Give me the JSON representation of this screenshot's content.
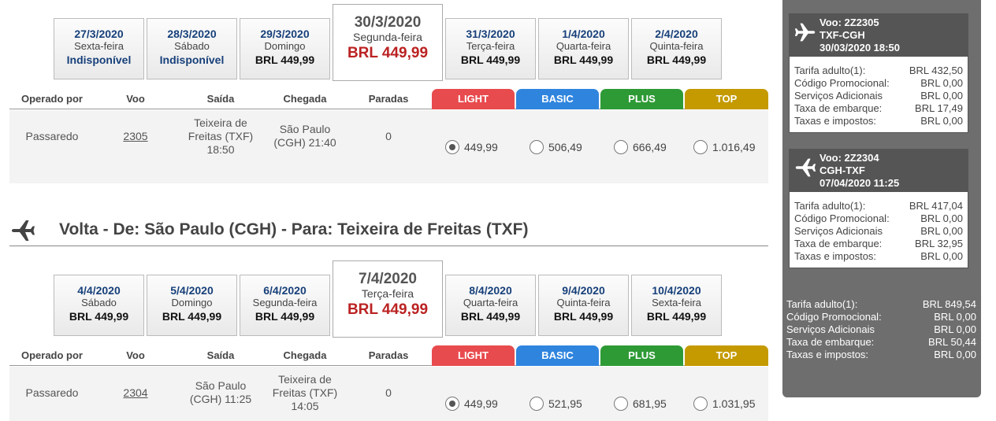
{
  "outbound": {
    "dates": [
      {
        "date": "27/3/2020",
        "weekday": "Sexta-feira",
        "price": "Indisponível",
        "unavailable": true
      },
      {
        "date": "28/3/2020",
        "weekday": "Sábado",
        "price": "Indisponível",
        "unavailable": true
      },
      {
        "date": "29/3/2020",
        "weekday": "Domingo",
        "price": "BRL 449,99"
      },
      {
        "date": "30/3/2020",
        "weekday": "Segunda-feira",
        "price": "BRL 449,99",
        "selected": true
      },
      {
        "date": "31/3/2020",
        "weekday": "Terça-feira",
        "price": "BRL 449,99"
      },
      {
        "date": "1/4/2020",
        "weekday": "Quarta-feira",
        "price": "BRL 449,99"
      },
      {
        "date": "2/4/2020",
        "weekday": "Quinta-feira",
        "price": "BRL 449,99"
      }
    ],
    "flight": {
      "operator": "Passaredo",
      "number": "2305",
      "departure": "Teixeira de Freitas (TXF) 18:50",
      "arrival": "São Paulo (CGH) 21:40",
      "stops": "0",
      "fares": [
        "449,99",
        "506,49",
        "666,49",
        "1.016,49"
      ],
      "selected_fare": 0
    }
  },
  "return_section": {
    "title": "Volta - De: São Paulo (CGH) - Para: Teixeira de Freitas (TXF)"
  },
  "inbound": {
    "dates": [
      {
        "date": "4/4/2020",
        "weekday": "Sábado",
        "price": "BRL 449,99"
      },
      {
        "date": "5/4/2020",
        "weekday": "Domingo",
        "price": "BRL 449,99"
      },
      {
        "date": "6/4/2020",
        "weekday": "Segunda-feira",
        "price": "BRL 449,99"
      },
      {
        "date": "7/4/2020",
        "weekday": "Terça-feira",
        "price": "BRL 449,99",
        "selected": true
      },
      {
        "date": "8/4/2020",
        "weekday": "Quarta-feira",
        "price": "BRL 449,99"
      },
      {
        "date": "9/4/2020",
        "weekday": "Quinta-feira",
        "price": "BRL 449,99"
      },
      {
        "date": "10/4/2020",
        "weekday": "Sexta-feira",
        "price": "BRL 449,99"
      }
    ],
    "flight": {
      "operator": "Passaredo",
      "number": "2304",
      "departure": "São Paulo (CGH) 11:25",
      "arrival": "Teixeira de Freitas (TXF) 14:05",
      "stops": "0",
      "fares": [
        "449,99",
        "521,95",
        "681,95",
        "1.031,95"
      ],
      "selected_fare": 0
    }
  },
  "table_headers": {
    "operator": "Operado por",
    "flight": "Voo",
    "departure": "Saída",
    "arrival": "Chegada",
    "stops": "Paradas"
  },
  "fare_types": [
    {
      "label": "LIGHT",
      "color": "#e84b4e"
    },
    {
      "label": "BASIC",
      "color": "#2f85de"
    },
    {
      "label": "PLUS",
      "color": "#2e9a35"
    },
    {
      "label": "TOP",
      "color": "#c49a00"
    }
  ],
  "sidebar": {
    "cards": [
      {
        "line1": "Voo: 2Z2305",
        "line2": "TXF-CGH",
        "line3": "30/03/2020 18:50",
        "rows": [
          {
            "label": "Tarifa adulto(1):",
            "value": "BRL 432,50"
          },
          {
            "label": "Código Promocional:",
            "value": "BRL 0,00"
          },
          {
            "label": "Serviços Adicionais",
            "value": "BRL 0,00"
          },
          {
            "label": "Taxa de embarque:",
            "value": "BRL 17,49"
          },
          {
            "label": "Taxas e impostos:",
            "value": "BRL 0,00"
          }
        ]
      },
      {
        "line1": "Voo: 2Z2304",
        "line2": "CGH-TXF",
        "line3": "07/04/2020 11:25",
        "rows": [
          {
            "label": "Tarifa adulto(1):",
            "value": "BRL 417,04"
          },
          {
            "label": "Código Promocional:",
            "value": "BRL 0,00"
          },
          {
            "label": "Serviços Adicionais",
            "value": "BRL 0,00"
          },
          {
            "label": "Taxa de embarque:",
            "value": "BRL 32,95"
          },
          {
            "label": "Taxas e impostos:",
            "value": "BRL 0,00"
          }
        ]
      }
    ],
    "totals": [
      {
        "label": "Tarifa adulto(1):",
        "value": "BRL 849,54"
      },
      {
        "label": "Código Promocional:",
        "value": "BRL 0,00"
      },
      {
        "label": "Serviços Adicionais",
        "value": "BRL 0,00"
      },
      {
        "label": "Taxa de embarque:",
        "value": "BRL 50,44"
      },
      {
        "label": "Taxas e impostos:",
        "value": "BRL 0,00"
      }
    ]
  }
}
